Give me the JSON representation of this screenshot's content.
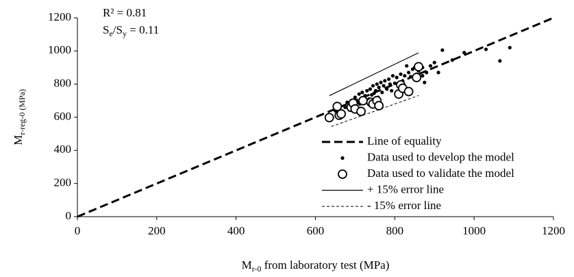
{
  "chart_data": {
    "type": "scatter",
    "annotations": [
      [
        {
          "text": "R² = 0.81"
        }
      ],
      [
        {
          "text": "S"
        },
        {
          "text": "e",
          "sub": true
        },
        {
          "text": "/S"
        },
        {
          "text": "y",
          "sub": true
        },
        {
          "text": " = 0.11"
        }
      ]
    ],
    "xlabel": [
      {
        "text": "M"
      },
      {
        "text": "r-0",
        "sub": true
      },
      {
        "text": " from laboratory test (MPa)"
      }
    ],
    "ylabel": [
      {
        "text": "M"
      },
      {
        "text": "r-reg-0 (MPa)",
        "sub": true
      }
    ],
    "xlim": [
      0,
      1200
    ],
    "ylim": [
      0,
      1200
    ],
    "xticks": [
      0,
      200,
      400,
      600,
      800,
      1000,
      1200
    ],
    "yticks": [
      0,
      200,
      400,
      600,
      800,
      1000,
      1200
    ],
    "grid": false,
    "legend": "lower right",
    "series": [
      {
        "name": "Line of equality",
        "style": "dashed",
        "color": "#000000",
        "x": [
          0,
          1200
        ],
        "y": [
          0,
          1200
        ]
      },
      {
        "name": "Data used to develop the model",
        "style": "filled-marker",
        "color": "#000000",
        "x": [
          650,
          660,
          668,
          675,
          680,
          685,
          690,
          695,
          700,
          705,
          710,
          712,
          718,
          722,
          725,
          730,
          735,
          738,
          742,
          745,
          748,
          752,
          755,
          758,
          760,
          765,
          768,
          772,
          775,
          780,
          785,
          788,
          792,
          795,
          800,
          805,
          810,
          815,
          820,
          825,
          830,
          835,
          840,
          845,
          850,
          855,
          860,
          870,
          875,
          880,
          890,
          900,
          910,
          920,
          945,
          975,
          1030,
          1065,
          1090,
          870
        ],
        "y": [
          640,
          655,
          630,
          660,
          690,
          645,
          700,
          670,
          720,
          690,
          740,
          680,
          750,
          700,
          730,
          760,
          710,
          770,
          735,
          790,
          745,
          760,
          800,
          720,
          780,
          810,
          750,
          790,
          820,
          770,
          830,
          800,
          760,
          850,
          805,
          840,
          790,
          860,
          820,
          850,
          910,
          870,
          845,
          890,
          900,
          860,
          880,
          900,
          810,
          870,
          910,
          930,
          870,
          1005,
          945,
          990,
          1010,
          940,
          1020,
          850
        ]
      },
      {
        "name": "Data used to validate the model",
        "style": "open-marker",
        "color": "#000000",
        "x": [
          635,
          655,
          660,
          665,
          690,
          695,
          700,
          715,
          720,
          740,
          745,
          755,
          760,
          810,
          815,
          820,
          835,
          855,
          860
        ],
        "y": [
          598,
          665,
          612,
          620,
          660,
          685,
          650,
          635,
          700,
          690,
          680,
          700,
          670,
          740,
          795,
          775,
          755,
          840,
          905
        ]
      },
      {
        "name": "+ 15% error line",
        "style": "solid",
        "color": "#000000",
        "x": [
          635,
          860
        ],
        "y": [
          730,
          989
        ]
      },
      {
        "name": "- 15% error line",
        "style": "dotted",
        "color": "#000000",
        "x": [
          640,
          860
        ],
        "y": [
          544,
          731
        ]
      }
    ]
  }
}
